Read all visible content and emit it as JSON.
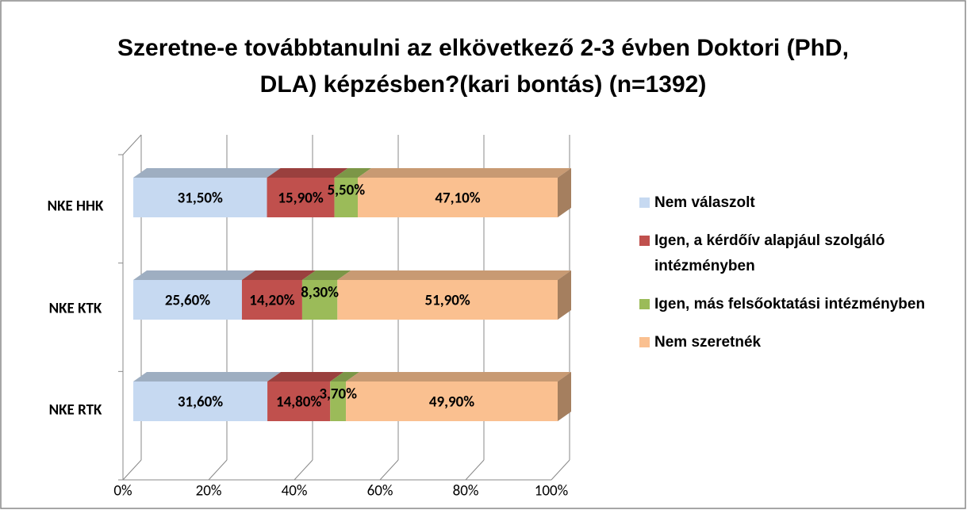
{
  "chart_data": {
    "type": "bar3d_stacked_h",
    "title": "Szeretne-e továbbtanulni az elkövetkező 2-3 évben Doktori (PhD, DLA) képzésben?(kari bontás) (n=1392)",
    "categories": [
      "NKE HHK",
      "NKE KTK",
      "NKE RTK"
    ],
    "series": [
      {
        "name": "Nem válaszolt",
        "color": "#c6d9f1",
        "values": [
          31.5,
          25.6,
          31.6
        ],
        "value_labels": [
          "31,50%",
          "25,60%",
          "31,60%"
        ]
      },
      {
        "name": "Igen, a kérdőív alapjául szolgáló intézményben",
        "color": "#c0504d",
        "values": [
          15.9,
          14.2,
          14.8
        ],
        "value_labels": [
          "15,90%",
          "14,20%",
          "14,80%"
        ]
      },
      {
        "name": "Igen, más felsőoktatási intézményben",
        "color": "#9bbb59",
        "values": [
          5.5,
          8.3,
          3.7
        ],
        "value_labels": [
          "5,50%",
          "8,30%",
          "3,70%"
        ]
      },
      {
        "name": "Nem szeretnék",
        "color": "#fac090",
        "values": [
          47.1,
          51.9,
          49.9
        ],
        "value_labels": [
          "47,10%",
          "51,90%",
          "49,90%"
        ]
      }
    ],
    "xlim": [
      0,
      100
    ],
    "xticks": [
      {
        "value": 0,
        "label": "0%"
      },
      {
        "value": 20,
        "label": "20%"
      },
      {
        "value": 40,
        "label": "40%"
      },
      {
        "value": 60,
        "label": "60%"
      },
      {
        "value": 80,
        "label": "80%"
      },
      {
        "value": 100,
        "label": "100%"
      }
    ],
    "grid": true,
    "legend": "right"
  }
}
